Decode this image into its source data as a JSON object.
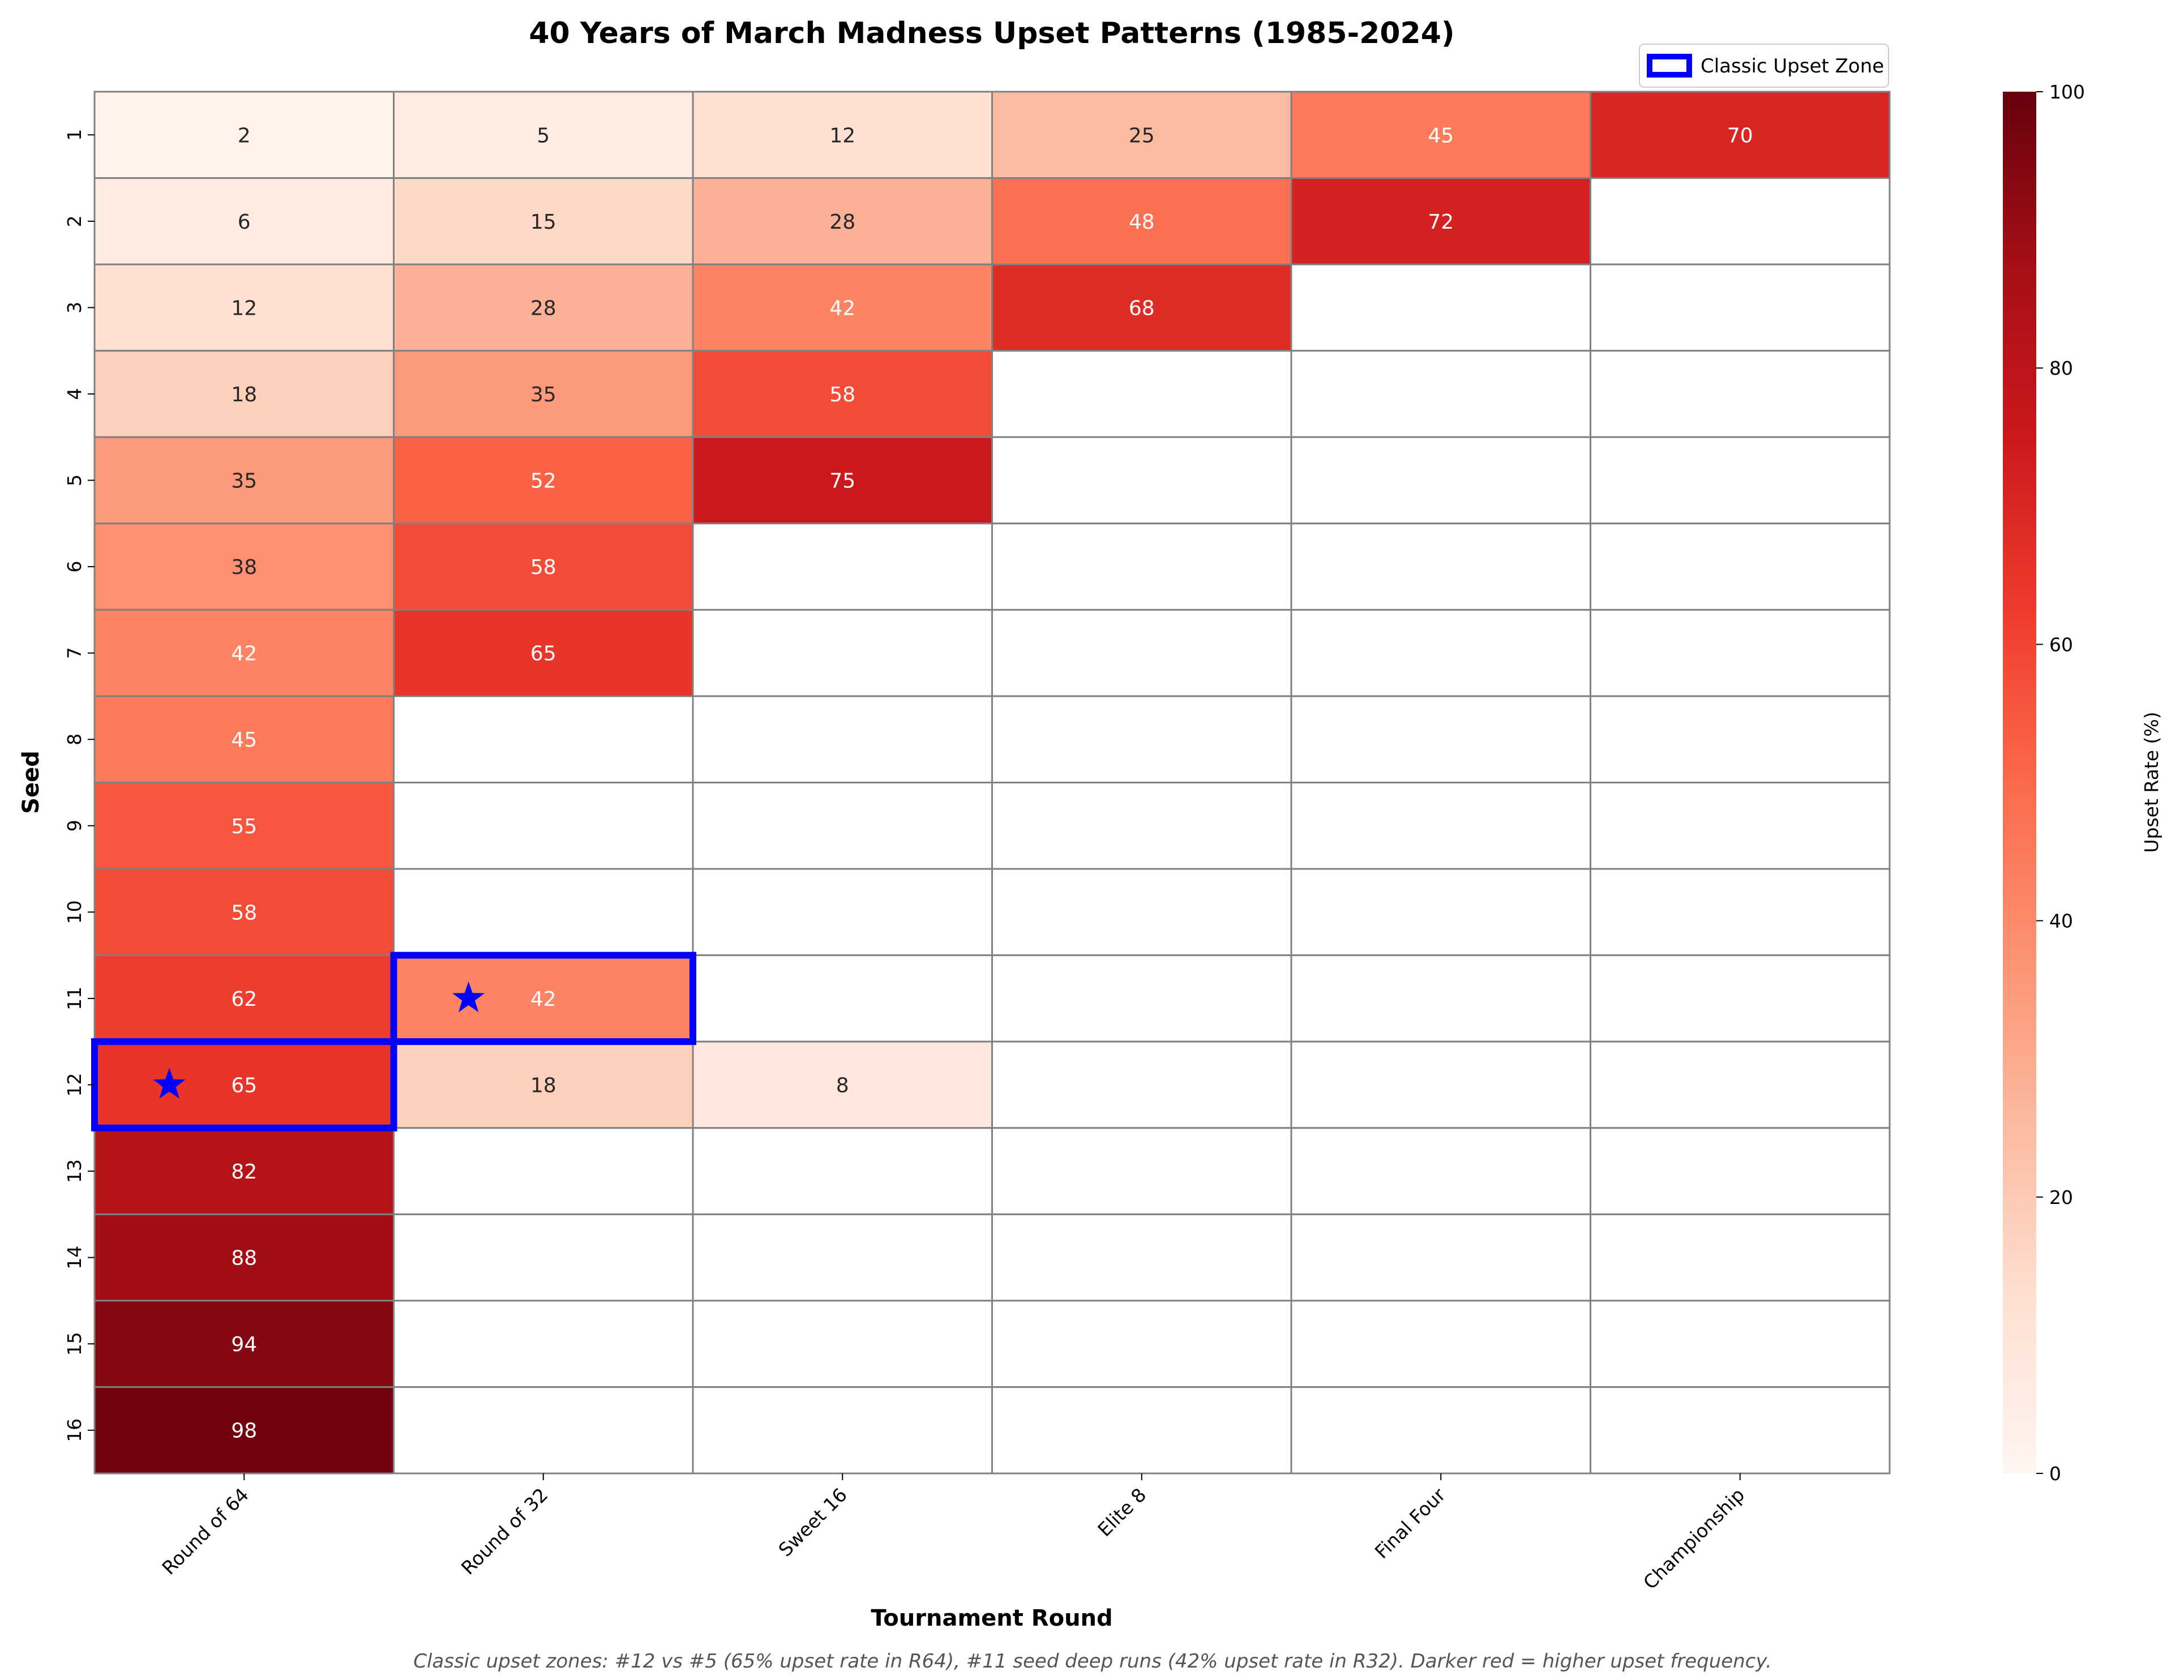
{
  "chart_data": {
    "type": "heatmap",
    "title": "40 Years of March Madness Upset Patterns (1985-2024)",
    "xlabel": "Tournament Round",
    "ylabel": "Seed",
    "x_categories": [
      "Round of 64",
      "Round of 32",
      "Sweet 16",
      "Elite 8",
      "Final Four",
      "Championship"
    ],
    "y_categories": [
      "1",
      "2",
      "3",
      "4",
      "5",
      "6",
      "7",
      "8",
      "9",
      "10",
      "11",
      "12",
      "13",
      "14",
      "15",
      "16"
    ],
    "values": [
      [
        2,
        5,
        12,
        25,
        45,
        70
      ],
      [
        6,
        15,
        28,
        48,
        72,
        null
      ],
      [
        12,
        28,
        42,
        68,
        null,
        null
      ],
      [
        18,
        35,
        58,
        null,
        null,
        null
      ],
      [
        35,
        52,
        75,
        null,
        null,
        null
      ],
      [
        38,
        58,
        null,
        null,
        null,
        null
      ],
      [
        42,
        65,
        null,
        null,
        null,
        null
      ],
      [
        45,
        null,
        null,
        null,
        null,
        null
      ],
      [
        55,
        null,
        null,
        null,
        null,
        null
      ],
      [
        58,
        null,
        null,
        null,
        null,
        null
      ],
      [
        62,
        42,
        null,
        null,
        null,
        null
      ],
      [
        65,
        18,
        8,
        null,
        null,
        null
      ],
      [
        82,
        null,
        null,
        null,
        null,
        null
      ],
      [
        88,
        null,
        null,
        null,
        null,
        null
      ],
      [
        94,
        null,
        null,
        null,
        null,
        null
      ],
      [
        98,
        null,
        null,
        null,
        null,
        null
      ]
    ],
    "colormap": "Reds",
    "colorbar": {
      "label": "Upset Rate (%)",
      "range": [
        0,
        100
      ],
      "ticks": [
        0,
        20,
        40,
        60,
        80,
        100
      ]
    },
    "highlights": [
      {
        "seed": "12",
        "round": "Round of 64",
        "marker": "star"
      },
      {
        "seed": "11",
        "round": "Round of 32",
        "marker": "star"
      }
    ],
    "highlight_color": "#0000ff",
    "legend": {
      "label": "Classic Upset Zone",
      "placement": "top-right"
    },
    "footnote": "Classic upset zones: #12 vs #5 (65% upset rate in R64), #11 seed deep runs (42% upset rate in R32). Darker red = higher upset frequency."
  }
}
